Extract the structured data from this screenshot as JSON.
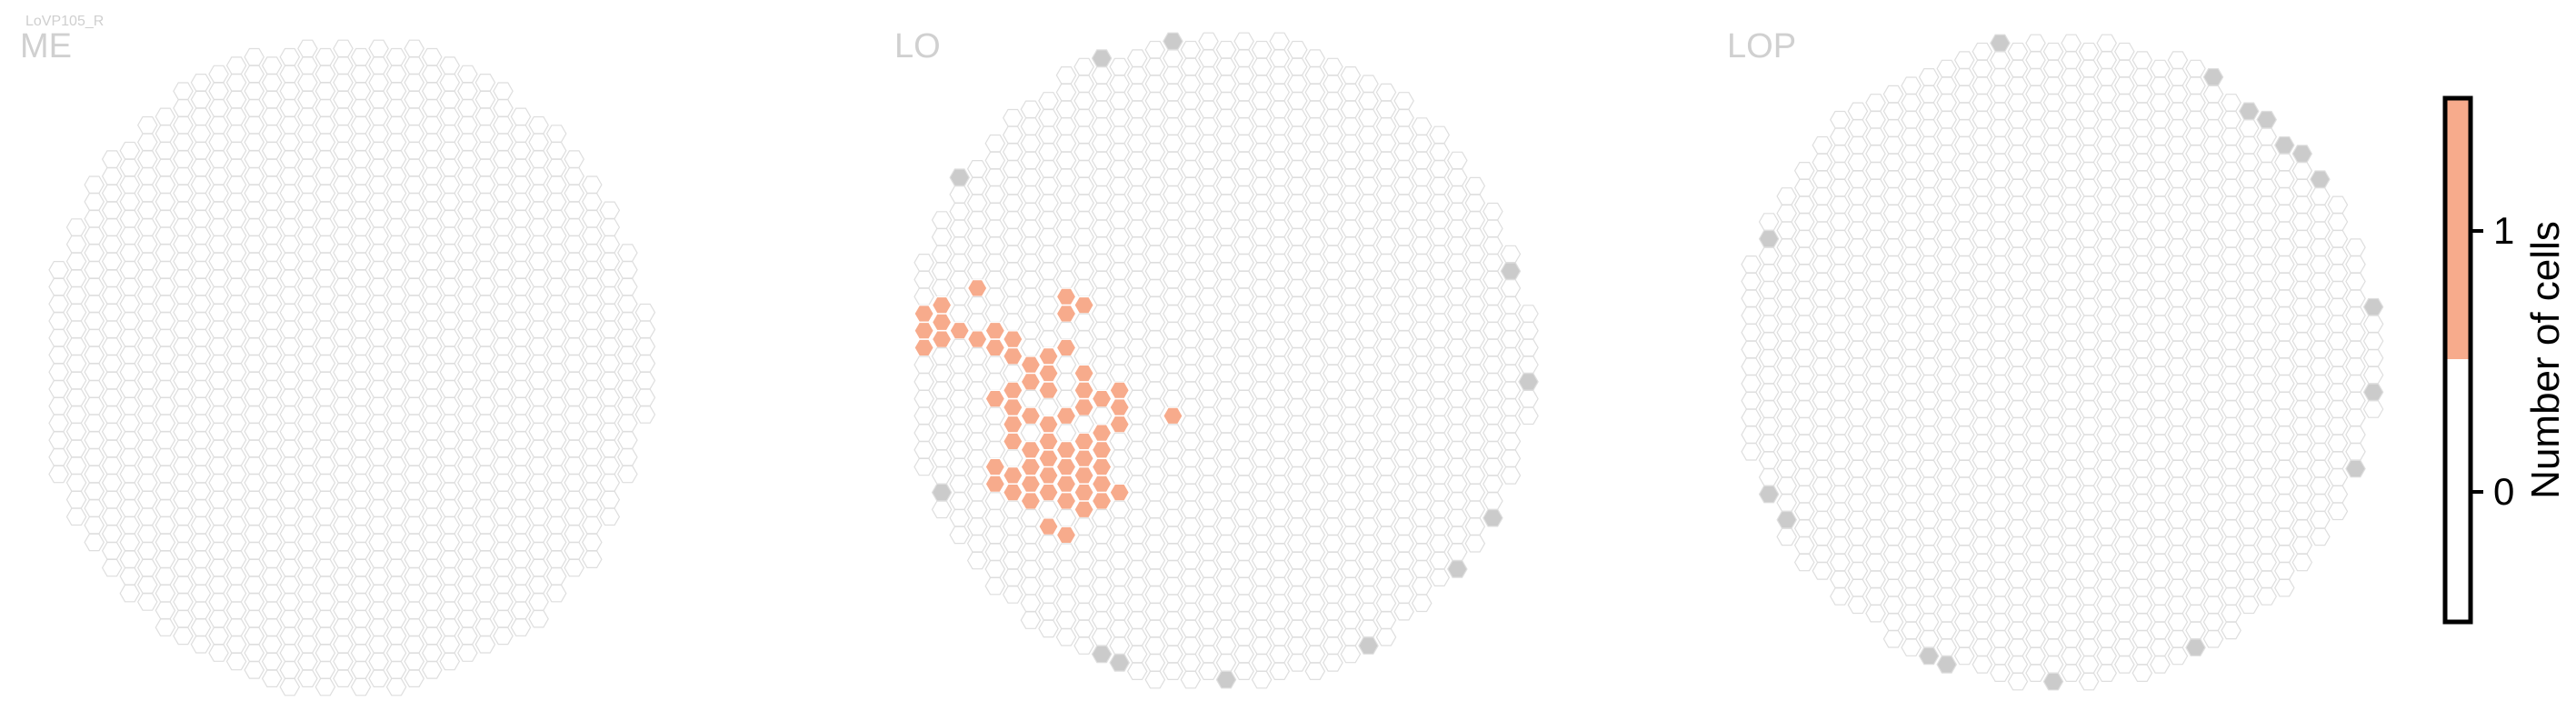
{
  "cell_type": "LoVP105_R",
  "panels": [
    {
      "title": "ME"
    },
    {
      "title": "LO"
    },
    {
      "title": "LOP"
    }
  ],
  "colorbar": {
    "title": "Number of cells",
    "ticks": [
      {
        "label": "0",
        "value": 0
      },
      {
        "label": "1",
        "value": 1
      }
    ],
    "range": [
      -0.5,
      1.5
    ],
    "colors": {
      "0": "#ffffff",
      "1": "#f7ab8c"
    }
  },
  "colors": {
    "empty_fill": "#ffffff",
    "hex_outline": "#dedede",
    "out_of_range_fill": "#cbcbcb",
    "one_cell_fill": "#f7ab8c",
    "title_gray": "#d0d0d0"
  },
  "chart_data": {
    "type": "heatmap",
    "description_units": "hex column (p) and row (q) indices of the hexagonal eye map",
    "series": [
      {
        "panel": "ME",
        "value_one_hexes": [],
        "gray_hexes": []
      },
      {
        "panel": "LO",
        "value_one_hexes": [
          [
            0,
            7
          ],
          [
            1,
            6
          ],
          [
            1,
            7
          ],
          [
            1,
            8
          ],
          [
            2,
            6
          ],
          [
            2,
            7
          ],
          [
            2,
            8
          ],
          [
            3,
            7
          ],
          [
            4,
            8
          ],
          [
            4,
            5
          ],
          [
            5,
            7
          ],
          [
            5,
            8
          ],
          [
            6,
            8
          ],
          [
            6,
            9
          ],
          [
            7,
            9
          ],
          [
            7,
            10
          ],
          [
            9,
            5
          ],
          [
            9,
            6
          ],
          [
            10,
            6
          ],
          [
            9,
            8
          ],
          [
            8,
            9
          ],
          [
            8,
            10
          ],
          [
            9,
            12
          ],
          [
            10,
            11
          ],
          [
            5,
            11
          ],
          [
            6,
            11
          ],
          [
            6,
            12
          ],
          [
            7,
            12
          ],
          [
            8,
            11
          ],
          [
            6,
            13
          ],
          [
            6,
            14
          ],
          [
            7,
            14
          ],
          [
            7,
            15
          ],
          [
            8,
            13
          ],
          [
            8,
            14
          ],
          [
            8,
            15
          ],
          [
            5,
            15
          ],
          [
            5,
            16
          ],
          [
            6,
            16
          ],
          [
            6,
            17
          ],
          [
            7,
            17
          ],
          [
            7,
            16
          ],
          [
            8,
            16
          ],
          [
            8,
            17
          ],
          [
            10,
            10
          ],
          [
            10,
            12
          ],
          [
            11,
            11
          ],
          [
            12,
            11
          ],
          [
            11,
            13
          ],
          [
            12,
            12
          ],
          [
            12,
            13
          ],
          [
            9,
            14
          ],
          [
            9,
            15
          ],
          [
            10,
            14
          ],
          [
            10,
            15
          ],
          [
            11,
            14
          ],
          [
            11,
            15
          ],
          [
            9,
            16
          ],
          [
            9,
            17
          ],
          [
            10,
            16
          ],
          [
            10,
            17
          ],
          [
            11,
            16
          ],
          [
            11,
            17
          ],
          [
            12,
            17
          ],
          [
            8,
            19
          ],
          [
            9,
            19
          ],
          [
            10,
            18
          ],
          [
            15,
            12
          ]
        ],
        "gray_hexes": []
      },
      {
        "panel": "LOP",
        "value_one_hexes": [],
        "gray_hexes": []
      }
    ]
  }
}
